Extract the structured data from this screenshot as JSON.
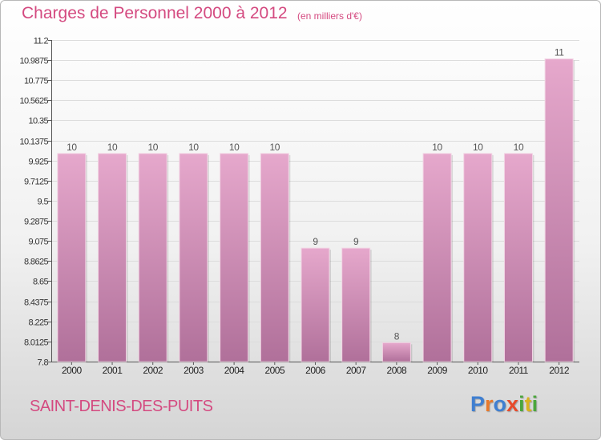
{
  "header": {
    "title": "Charges de Personnel 2000 à 2012",
    "unit": "(en milliers d'€)"
  },
  "footer": {
    "commune": "SAINT-DENIS-DES-PUITS",
    "logo_letters": [
      "P",
      "r",
      "o",
      "x",
      "i",
      "t",
      "i"
    ]
  },
  "colors": {
    "bar_top": "#e6a8cc",
    "bar_bottom": "#b0709a",
    "accent": "#d44a80"
  },
  "chart_data": {
    "type": "bar",
    "title": "Charges de Personnel 2000 à 2012",
    "subtitle": "(en milliers d'€)",
    "categories": [
      "2000",
      "2001",
      "2002",
      "2003",
      "2004",
      "2005",
      "2006",
      "2007",
      "2008",
      "2009",
      "2010",
      "2011",
      "2012"
    ],
    "values": [
      10,
      10,
      10,
      10,
      10,
      10,
      9,
      9,
      8,
      10,
      10,
      10,
      11
    ],
    "data_labels": [
      "10",
      "10",
      "10",
      "10",
      "10",
      "10",
      "9",
      "9",
      "8",
      "10",
      "10",
      "10",
      "11"
    ],
    "yticks": [
      "7.8",
      "8.0125",
      "8.225",
      "8.4375",
      "8.65",
      "8.8625",
      "9.075",
      "9.2875",
      "9.5",
      "9.7125",
      "9.925",
      "10.1375",
      "10.35",
      "10.5625",
      "10.775",
      "10.9875",
      "11.2"
    ],
    "ylim": [
      7.8,
      11.2
    ],
    "xlabel": "",
    "ylabel": "",
    "grid": "horizontal",
    "legend": "none"
  }
}
